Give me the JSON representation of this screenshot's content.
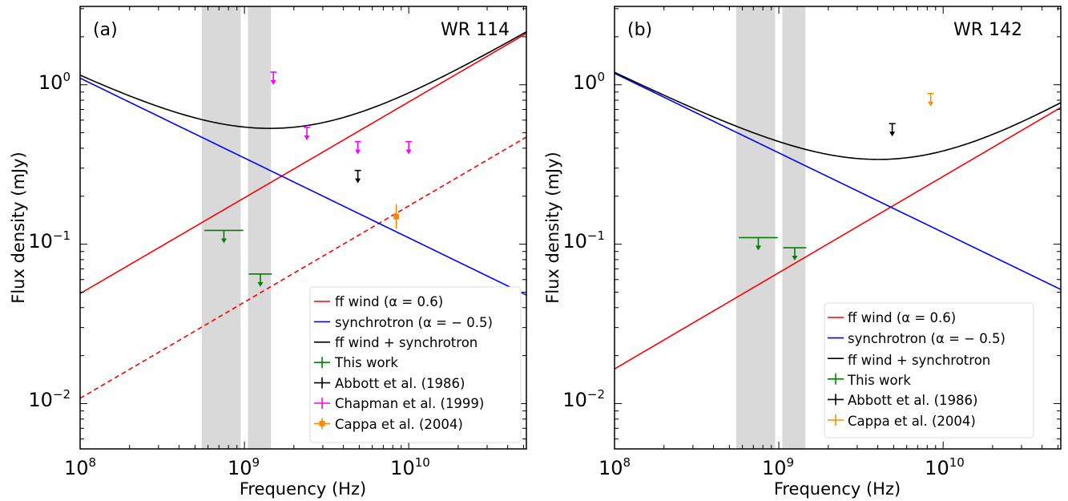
{
  "chart_data": [
    {
      "type": "line",
      "panel_label": "(a)",
      "title": "WR 114",
      "xlabel": "Frequency (Hz)",
      "ylabel": "Flux density (mJy)",
      "x_scale": "log",
      "y_scale": "log",
      "xlim": [
        100000000.0,
        52000000000.0
      ],
      "ylim": [
        0.0052,
        3.1
      ],
      "x_ticks": [
        {
          "value": 100000000.0,
          "base": "10",
          "exp": "8"
        },
        {
          "value": 1000000000.0,
          "base": "10",
          "exp": "9"
        },
        {
          "value": 10000000000.0,
          "base": "10",
          "exp": "10"
        }
      ],
      "y_ticks": [
        {
          "value": 0.01,
          "base": "10",
          "exp": "−2"
        },
        {
          "value": 0.1,
          "base": "10",
          "exp": "−1"
        },
        {
          "value": 1,
          "base": "10",
          "exp": "0"
        }
      ],
      "shaded_bands": [
        {
          "x": [
            550000000.0,
            950000000.0
          ],
          "color": "#d9d9d9"
        },
        {
          "x": [
            1050000000.0,
            1450000000.0
          ],
          "color": "#d9d9d9"
        }
      ],
      "series": [
        {
          "name": "ff wind (α = 0.6)",
          "kind": "power_law",
          "color": "#ff0000",
          "style": "solid",
          "x": [
            100000000.0,
            52000000000.0
          ],
          "y": [
            0.049,
            2.1
          ]
        },
        {
          "name": "",
          "kind": "power_law",
          "color": "#ff0000",
          "style": "dashed",
          "x": [
            100000000.0,
            52000000000.0
          ],
          "y": [
            0.0108,
            0.47
          ]
        },
        {
          "name": "synchrotron (α = − 0.5)",
          "kind": "power_law",
          "color": "#0000ff",
          "style": "solid",
          "x": [
            100000000.0,
            52000000000.0
          ],
          "y": [
            1.1,
            0.048
          ]
        },
        {
          "name": "ff wind + synchrotron",
          "kind": "sum",
          "color": "#000000",
          "style": "solid",
          "components": [
            0,
            2
          ]
        }
      ],
      "markers": [
        {
          "dataset": "This work",
          "kind": "upper_limit",
          "color": "#008000",
          "x": 750000000.0,
          "x_err": [
            550000000.0,
            950000000.0
          ],
          "y": 0.122
        },
        {
          "dataset": "This work",
          "kind": "upper_limit",
          "color": "#008000",
          "x": 1250000000.0,
          "x_err": [
            1050000000.0,
            1450000000.0
          ],
          "y": 0.065
        },
        {
          "dataset": "Abbott et al. (1986)",
          "kind": "upper_limit",
          "color": "#000000",
          "x": 4900000000.0,
          "y": 0.29
        },
        {
          "dataset": "Chapman et al. (1999)",
          "kind": "upper_limit",
          "color": "#ff00ff",
          "x": 1500000000.0,
          "y": 1.2
        },
        {
          "dataset": "Chapman et al. (1999)",
          "kind": "upper_limit",
          "color": "#ff00ff",
          "x": 2400000000.0,
          "y": 0.54
        },
        {
          "dataset": "Chapman et al. (1999)",
          "kind": "upper_limit",
          "color": "#ff00ff",
          "x": 4900000000.0,
          "y": 0.44
        },
        {
          "dataset": "Chapman et al. (1999)",
          "kind": "upper_limit",
          "color": "#ff00ff",
          "x": 10000000000.0,
          "y": 0.44
        },
        {
          "dataset": "Cappa et al. (2004)",
          "kind": "detection",
          "color": "#ff8c00",
          "x": 8400000000.0,
          "y": 0.149,
          "y_err": [
            0.125,
            0.178
          ]
        }
      ],
      "legend": {
        "placement": "lower-right",
        "entries": [
          {
            "label": "ff wind (α = 0.6)",
            "color": "#ff0000",
            "kind": "line"
          },
          {
            "label": "synchrotron (α = − 0.5)",
            "color": "#0000ff",
            "kind": "line"
          },
          {
            "label": "ff wind + synchrotron",
            "color": "#000000",
            "kind": "line"
          },
          {
            "label": "This work",
            "color": "#008000",
            "kind": "errorbar"
          },
          {
            "label": "Abbott et al. (1986)",
            "color": "#000000",
            "kind": "errorbar"
          },
          {
            "label": "Chapman et al. (1999)",
            "color": "#ff00ff",
            "kind": "errorbar"
          },
          {
            "label": "Cappa et al. (2004)",
            "color": "#ff8c00",
            "kind": "errorbar-point"
          }
        ]
      }
    },
    {
      "type": "line",
      "panel_label": "(b)",
      "title": "WR 142",
      "xlabel": "Frequency (Hz)",
      "ylabel": "Flux density (mJy)",
      "x_scale": "log",
      "y_scale": "log",
      "xlim": [
        100000000.0,
        52000000000.0
      ],
      "ylim": [
        0.0052,
        3.1
      ],
      "x_ticks": [
        {
          "value": 100000000.0,
          "base": "10",
          "exp": "8"
        },
        {
          "value": 1000000000.0,
          "base": "10",
          "exp": "9"
        },
        {
          "value": 10000000000.0,
          "base": "10",
          "exp": "10"
        }
      ],
      "y_ticks": [
        {
          "value": 0.01,
          "base": "10",
          "exp": "−2"
        },
        {
          "value": 0.1,
          "base": "10",
          "exp": "−1"
        },
        {
          "value": 1,
          "base": "10",
          "exp": "0"
        }
      ],
      "shaded_bands": [
        {
          "x": [
            550000000.0,
            950000000.0
          ],
          "color": "#d9d9d9"
        },
        {
          "x": [
            1050000000.0,
            1450000000.0
          ],
          "color": "#d9d9d9"
        }
      ],
      "series": [
        {
          "name": "ff wind (α = 0.6)",
          "kind": "power_law",
          "color": "#ff0000",
          "style": "solid",
          "x": [
            100000000.0,
            52000000000.0
          ],
          "y": [
            0.0165,
            0.72
          ]
        },
        {
          "name": "synchrotron (α = − 0.5)",
          "kind": "power_law",
          "color": "#0000ff",
          "style": "solid",
          "x": [
            100000000.0,
            52000000000.0
          ],
          "y": [
            1.18,
            0.052
          ]
        },
        {
          "name": "ff wind + synchrotron",
          "kind": "sum",
          "color": "#000000",
          "style": "solid",
          "components": [
            0,
            1
          ]
        }
      ],
      "markers": [
        {
          "dataset": "This work",
          "kind": "upper_limit",
          "color": "#008000",
          "x": 750000000.0,
          "x_err": [
            550000000.0,
            950000000.0
          ],
          "y": 0.11
        },
        {
          "dataset": "This work",
          "kind": "upper_limit",
          "color": "#008000",
          "x": 1250000000.0,
          "x_err": [
            1050000000.0,
            1450000000.0
          ],
          "y": 0.095
        },
        {
          "dataset": "Abbott et al. (1986)",
          "kind": "upper_limit",
          "color": "#000000",
          "x": 4900000000.0,
          "y": 0.57
        },
        {
          "dataset": "Cappa et al. (2004)",
          "kind": "upper_limit",
          "color": "#ff8c00",
          "x": 8400000000.0,
          "y": 0.88
        }
      ],
      "legend": {
        "placement": "lower-right",
        "entries": [
          {
            "label": "ff wind (α = 0.6)",
            "color": "#ff0000",
            "kind": "line"
          },
          {
            "label": "synchrotron (α = − 0.5)",
            "color": "#0000ff",
            "kind": "line"
          },
          {
            "label": "ff wind + synchrotron",
            "color": "#000000",
            "kind": "line"
          },
          {
            "label": "This work",
            "color": "#008000",
            "kind": "errorbar"
          },
          {
            "label": "Abbott et al. (1986)",
            "color": "#000000",
            "kind": "errorbar"
          },
          {
            "label": "Cappa et al. (2004)",
            "color": "#ff8c00",
            "kind": "errorbar"
          }
        ]
      }
    }
  ]
}
